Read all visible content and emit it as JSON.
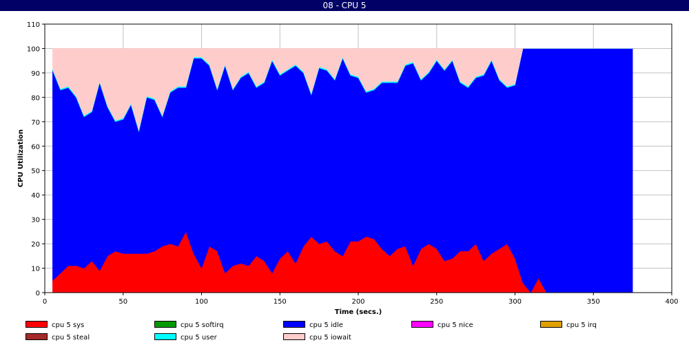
{
  "window": {
    "title": "08 - CPU 5"
  },
  "chart_data": {
    "type": "area",
    "stacked": true,
    "xlabel": "Time (secs.)",
    "ylabel": "CPU Utilization",
    "xlim": [
      0,
      400
    ],
    "ylim": [
      0,
      110
    ],
    "x_ticks": [
      0,
      50,
      100,
      150,
      200,
      250,
      300,
      350,
      400
    ],
    "y_ticks": [
      0,
      10,
      20,
      30,
      40,
      50,
      60,
      70,
      80,
      90,
      100,
      110
    ],
    "grid": true,
    "legend_position": "bottom",
    "x": [
      5,
      10,
      15,
      20,
      25,
      30,
      35,
      40,
      45,
      50,
      55,
      60,
      65,
      70,
      75,
      80,
      85,
      90,
      95,
      100,
      105,
      110,
      115,
      120,
      125,
      130,
      135,
      140,
      145,
      150,
      155,
      160,
      165,
      170,
      175,
      180,
      185,
      190,
      195,
      200,
      205,
      210,
      215,
      220,
      225,
      230,
      235,
      240,
      245,
      250,
      255,
      260,
      265,
      270,
      275,
      280,
      285,
      290,
      295,
      300,
      305,
      310,
      315,
      320,
      325,
      330,
      335,
      340,
      345,
      350,
      355,
      360,
      365,
      370,
      375
    ],
    "series": [
      {
        "name": "cpu 5 sys",
        "color": "#ff0000",
        "values": [
          5,
          8,
          11,
          11,
          10,
          13,
          9,
          15,
          17,
          16,
          16,
          16,
          16,
          17,
          19,
          20,
          19,
          25,
          16,
          10,
          19,
          17,
          8,
          11,
          12,
          11,
          15,
          13,
          8,
          14,
          17,
          12,
          19,
          23,
          20,
          21,
          17,
          15,
          21,
          21,
          23,
          22,
          18,
          15,
          18,
          19,
          11,
          18,
          20,
          18,
          13,
          14,
          17,
          17,
          20,
          13,
          16,
          18,
          20,
          14,
          4,
          0,
          6,
          0,
          0,
          0,
          0,
          0,
          0,
          0,
          0,
          0,
          0,
          0,
          0
        ]
      },
      {
        "name": "cpu 5 softirq",
        "color": "#009900",
        "values": [
          0,
          0,
          0,
          0,
          0,
          0,
          0,
          0,
          0,
          0,
          0,
          0,
          0,
          0,
          0,
          0,
          0,
          0,
          0,
          0,
          0,
          0,
          0,
          0,
          0,
          0,
          0,
          0,
          0,
          0,
          0,
          0,
          0,
          0,
          0,
          0,
          0,
          0,
          0,
          0,
          0,
          0,
          0,
          0,
          0,
          0,
          0,
          0,
          0,
          0,
          0,
          0,
          0,
          0,
          0,
          0,
          0,
          0,
          0,
          0,
          0,
          0,
          0,
          0,
          0,
          0,
          0,
          0,
          0,
          0,
          0,
          0,
          0,
          0,
          0
        ]
      },
      {
        "name": "cpu 5 idle",
        "color": "#0000ff",
        "values": [
          86,
          75,
          73,
          69,
          62,
          61,
          77,
          61,
          53,
          55,
          61,
          50,
          64,
          62,
          53,
          62,
          65,
          59,
          80,
          86,
          74,
          66,
          85,
          72,
          76,
          79,
          69,
          73,
          87,
          75,
          74,
          81,
          71,
          58,
          72,
          70,
          70,
          81,
          68,
          67,
          59,
          61,
          68,
          71,
          68,
          74,
          83,
          69,
          70,
          77,
          78,
          81,
          69,
          67,
          68,
          76,
          79,
          69,
          64,
          71,
          96,
          100,
          94,
          100,
          100,
          100,
          100,
          100,
          100,
          100,
          100,
          100,
          100,
          100,
          100
        ]
      },
      {
        "name": "cpu 5 nice",
        "color": "#ff00ff",
        "values": [
          0,
          0,
          0,
          0,
          0,
          0,
          0,
          0,
          0,
          0,
          0,
          0,
          0,
          0,
          0,
          0,
          0,
          0,
          0,
          0,
          0,
          0,
          0,
          0,
          0,
          0,
          0,
          0,
          0,
          0,
          0,
          0,
          0,
          0,
          0,
          0,
          0,
          0,
          0,
          0,
          0,
          0,
          0,
          0,
          0,
          0,
          0,
          0,
          0,
          0,
          0,
          0,
          0,
          0,
          0,
          0,
          0,
          0,
          0,
          0,
          0,
          0,
          0,
          0,
          0,
          0,
          0,
          0,
          0,
          0,
          0,
          0,
          0,
          0,
          0
        ]
      },
      {
        "name": "cpu 5 irq",
        "color": "#e0a000",
        "values": [
          0,
          0,
          0,
          0,
          0,
          0,
          0,
          0,
          0,
          0,
          0,
          0,
          0,
          0,
          0,
          0,
          0,
          0,
          0,
          0,
          0,
          0,
          0,
          0,
          0,
          0,
          0,
          0,
          0,
          0,
          0,
          0,
          0,
          0,
          0,
          0,
          0,
          0,
          0,
          0,
          0,
          0,
          0,
          0,
          0,
          0,
          0,
          0,
          0,
          0,
          0,
          0,
          0,
          0,
          0,
          0,
          0,
          0,
          0,
          0,
          0,
          0,
          0,
          0,
          0,
          0,
          0,
          0,
          0,
          0,
          0,
          0,
          0,
          0,
          0
        ]
      },
      {
        "name": "cpu 5 steal",
        "color": "#a52a2a",
        "values": [
          0,
          0,
          0,
          0,
          0,
          0,
          0,
          0,
          0,
          0,
          0,
          0,
          0,
          0,
          0,
          0,
          0,
          0,
          0,
          0,
          0,
          0,
          0,
          0,
          0,
          0,
          0,
          0,
          0,
          0,
          0,
          0,
          0,
          0,
          0,
          0,
          0,
          0,
          0,
          0,
          0,
          0,
          0,
          0,
          0,
          0,
          0,
          0,
          0,
          0,
          0,
          0,
          0,
          0,
          0,
          0,
          0,
          0,
          0,
          0,
          0,
          0,
          0,
          0,
          0,
          0,
          0,
          0,
          0,
          0,
          0,
          0,
          0,
          0,
          0
        ]
      },
      {
        "name": "cpu 5 user",
        "color": "#00ffff",
        "values": [
          0.5,
          0.5,
          0.5,
          0.5,
          0.5,
          0.5,
          0.5,
          0.5,
          0.5,
          0.5,
          0.5,
          0.5,
          0.5,
          0.5,
          0.5,
          0.5,
          0.5,
          0.5,
          0.5,
          0.5,
          0.5,
          0.5,
          0.5,
          0.5,
          0.5,
          0.5,
          0.5,
          0.5,
          0.5,
          0.5,
          0.5,
          0.5,
          0.5,
          0.5,
          0.5,
          0.5,
          0.5,
          0.5,
          0.5,
          0.5,
          0.5,
          0.5,
          0.5,
          0.5,
          0.5,
          0.5,
          0.5,
          0.5,
          0.5,
          0.5,
          0.5,
          0.5,
          0.5,
          0.5,
          0.5,
          0.5,
          0.5,
          0.5,
          0.5,
          0.5,
          0,
          0,
          0,
          0,
          0,
          0,
          0,
          0,
          0,
          0,
          0,
          0,
          0,
          0,
          0
        ]
      },
      {
        "name": "cpu 5 iowait",
        "color": "#ffcccc",
        "values": [
          8.5,
          16.5,
          15.5,
          19.5,
          27.5,
          25.5,
          13.5,
          23.5,
          29.5,
          28.5,
          22.5,
          33.5,
          19.5,
          20.5,
          27.5,
          17.5,
          15.5,
          15.5,
          3.5,
          3.5,
          6.5,
          16.5,
          6.5,
          16.5,
          11.5,
          9.5,
          15.5,
          13.5,
          4.5,
          10.5,
          8.5,
          6.5,
          9.5,
          18.5,
          7.5,
          8.5,
          12.5,
          3.5,
          10.5,
          11.5,
          17.5,
          16.5,
          13.5,
          13.5,
          13.5,
          6.5,
          5.5,
          12.5,
          9.5,
          4.5,
          8.5,
          4.5,
          13.5,
          15.5,
          11.5,
          10.5,
          4.5,
          12.5,
          15.5,
          14.5,
          0,
          0,
          0,
          0,
          0,
          0,
          0,
          0,
          0,
          0,
          0,
          0,
          0,
          0,
          0
        ]
      }
    ]
  }
}
